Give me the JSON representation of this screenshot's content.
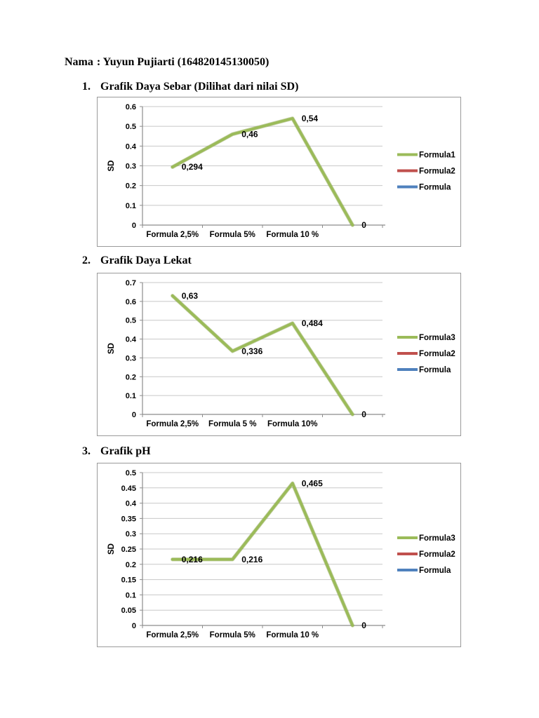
{
  "header": {
    "name_label": "Nama",
    "name_value": ": Yuyun Pujiarti (164820145130050)"
  },
  "chart_data": [
    {
      "type": "line",
      "section_number": "1.",
      "title": "Grafik Daya Sebar (Dilihat dari nilai SD)",
      "xlabel": "",
      "ylabel": "SD",
      "ylim": [
        0,
        0.6
      ],
      "yticks": [
        "0",
        "0.1",
        "0.2",
        "0.3",
        "0.4",
        "0.5",
        "0.6"
      ],
      "categories": [
        "Formula 2,5%",
        "Formula 5%",
        "Formula 10 %",
        ""
      ],
      "grid": true,
      "legend_position": "right",
      "series": [
        {
          "name": "Formula1",
          "color": "#9BBB59",
          "values": [
            0.294,
            0.46,
            0.54,
            0
          ],
          "point_labels": [
            "0,294",
            "0,46",
            "0,54",
            "0"
          ]
        }
      ],
      "legend": [
        {
          "label": "Formula1",
          "color": "#9BBB59"
        },
        {
          "label": "Formula2",
          "color": "#C0504D"
        },
        {
          "label": "Formula",
          "color": "#4F81BD"
        }
      ]
    },
    {
      "type": "line",
      "section_number": "2.",
      "title": "Grafik Daya Lekat",
      "xlabel": "",
      "ylabel": "SD",
      "ylim": [
        0,
        0.7
      ],
      "yticks": [
        "0",
        "0.1",
        "0.2",
        "0.3",
        "0.4",
        "0.5",
        "0.6",
        "0.7"
      ],
      "categories": [
        "Formula 2,5%",
        "Formula 5 %",
        "Formula 10%",
        ""
      ],
      "grid": true,
      "legend_position": "right",
      "series": [
        {
          "name": "Formula3",
          "color": "#9BBB59",
          "values": [
            0.63,
            0.336,
            0.484,
            0
          ],
          "point_labels": [
            "0,63",
            "0,336",
            "0,484",
            "0"
          ]
        }
      ],
      "legend": [
        {
          "label": "Formula3",
          "color": "#9BBB59"
        },
        {
          "label": "Formula2",
          "color": "#C0504D"
        },
        {
          "label": "Formula",
          "color": "#4F81BD"
        }
      ]
    },
    {
      "type": "line",
      "section_number": "3.",
      "title": "Grafik pH",
      "xlabel": "",
      "ylabel": "SD",
      "ylim": [
        0,
        0.5
      ],
      "yticks": [
        "0",
        "0.05",
        "0.1",
        "0.15",
        "0.2",
        "0.25",
        "0.3",
        "0.35",
        "0.4",
        "0.45",
        "0.5"
      ],
      "categories": [
        "Formula 2,5%",
        "Formula 5%",
        "Formula 10 %",
        ""
      ],
      "grid": true,
      "legend_position": "right",
      "series": [
        {
          "name": "Formula3",
          "color": "#9BBB59",
          "values": [
            0.216,
            0.216,
            0.465,
            0
          ],
          "point_labels": [
            "0,216",
            "0,216",
            "0,465",
            "0"
          ]
        }
      ],
      "legend": [
        {
          "label": "Formula3",
          "color": "#9BBB59"
        },
        {
          "label": "Formula2",
          "color": "#C0504D"
        },
        {
          "label": "Formula",
          "color": "#4F81BD"
        }
      ]
    }
  ]
}
